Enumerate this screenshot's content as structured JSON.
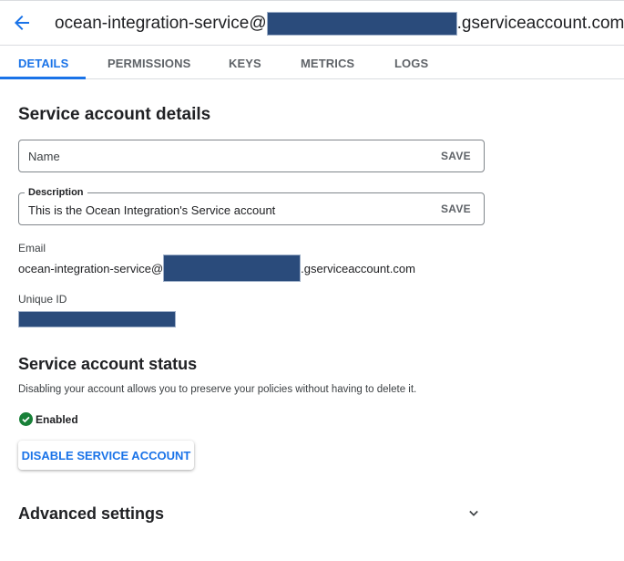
{
  "header": {
    "title_prefix": "ocean-integration-service@",
    "title_suffix": ".gserviceaccount.com"
  },
  "tabs": [
    {
      "label": "DETAILS"
    },
    {
      "label": "PERMISSIONS"
    },
    {
      "label": "KEYS"
    },
    {
      "label": "METRICS"
    },
    {
      "label": "LOGS"
    }
  ],
  "details": {
    "heading": "Service account details",
    "name_field": {
      "placeholder": "Name",
      "save": "SAVE"
    },
    "description_field": {
      "label": "Description",
      "value": "This is the Ocean Integration's Service account",
      "save": "SAVE"
    },
    "email_label": "Email",
    "email_prefix": "ocean-integration-service@",
    "email_suffix": ".gserviceaccount.com",
    "unique_id_label": "Unique ID"
  },
  "status": {
    "heading": "Service account status",
    "description": "Disabling your account allows you to preserve your policies without having to delete it.",
    "state": "Enabled",
    "disable_button": "DISABLE SERVICE ACCOUNT"
  },
  "advanced": {
    "heading": "Advanced settings"
  },
  "colors": {
    "accent": "#1a73e8",
    "success": "#188038",
    "redaction": "#2a4b7b"
  }
}
